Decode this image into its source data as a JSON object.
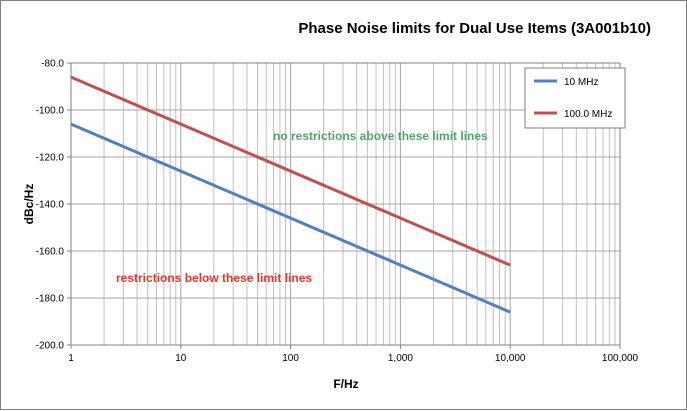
{
  "chart_data": {
    "type": "line",
    "title": "Phase Noise limits for Dual Use Items (3A001b10)",
    "xlabel": "F/Hz",
    "ylabel": "dBc/Hz",
    "x_scale": "log",
    "xlim": [
      1,
      100000
    ],
    "ylim": [
      -200,
      -80
    ],
    "x_ticks": [
      1,
      10,
      100,
      1000,
      10000,
      100000
    ],
    "x_tick_labels": [
      "1",
      "10",
      "100",
      "1,000",
      "10,000",
      "100,000"
    ],
    "y_ticks": [
      -200,
      -180,
      -160,
      -140,
      -120,
      -100,
      -80
    ],
    "y_tick_labels": [
      "-200.0",
      "-180.0",
      "-160.0",
      "-140.0",
      "-120.0",
      "-100.0",
      "-80.0"
    ],
    "grid": true,
    "legend": "top-right",
    "series": [
      {
        "name": "10 MHz",
        "color": "#4f81bd",
        "x": [
          1,
          10000
        ],
        "y": [
          -106,
          -186
        ]
      },
      {
        "name": "100.0 MHz",
        "color": "#c0504d",
        "x": [
          1,
          10000
        ],
        "y": [
          -86,
          -166
        ]
      }
    ],
    "annotations": [
      {
        "text": "no restrictions  above these limit lines",
        "color": "#4ea66b"
      },
      {
        "text": "restrictions  below these limit lines",
        "color": "#d93a2b"
      }
    ]
  }
}
